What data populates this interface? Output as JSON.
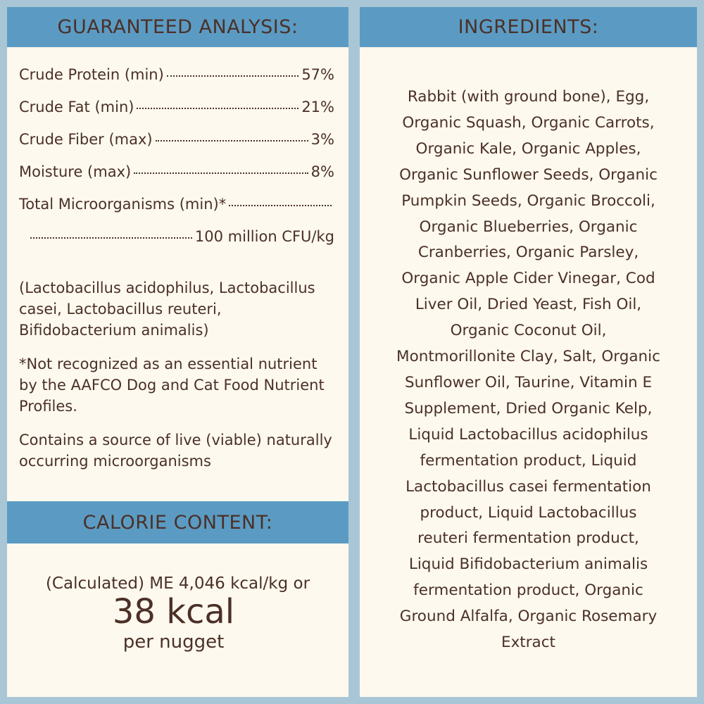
{
  "guaranteed_analysis": {
    "title": "GUARANTEED ANALYSIS:",
    "rows": [
      {
        "label": "Crude Protein (min)",
        "value": "57%"
      },
      {
        "label": "Crude Fat (min)",
        "value": "21%"
      },
      {
        "label": "Crude Fiber (max)",
        "value": "3%"
      },
      {
        "label": "Moisture (max)",
        "value": "8%"
      },
      {
        "label": "Total Microorganisms (min)*",
        "value": "100 million CFU/kg"
      }
    ],
    "notes": [
      "(Lactobacillus acidophilus, Lactobacillus casei, Lactobacillus reuteri, Bifidobacterium animalis)",
      "*Not recognized as an essential nutrient by the AAFCO Dog and Cat Food Nutrient Profiles.",
      "Contains a source of live (viable) naturally occurring microorganisms"
    ]
  },
  "calorie_content": {
    "title": "CALORIE CONTENT:",
    "line": "(Calculated) ME 4,046 kcal/kg or",
    "big": "38 kcal",
    "unit": "per nugget"
  },
  "ingredients": {
    "title": "INGREDIENTS:",
    "lines": [
      "Rabbit (with ground bone), Egg,",
      "Organic Squash, Organic Carrots,",
      "Organic Kale, Organic Apples,",
      "Organic Sunflower Seeds, Organic",
      "Pumpkin Seeds, Organic Broccoli,",
      "Organic Blueberries, Organic",
      "Cranberries, Organic Parsley,",
      "Organic Apple Cider Vinegar, Cod",
      "Liver Oil, Dried Yeast, Fish Oil,",
      "Organic Coconut Oil,",
      "Montmorillonite Clay, Salt, Organic",
      "Sunflower Oil, Taurine, Vitamin E",
      "Supplement, Dried Organic Kelp,",
      "Liquid Lactobacillus acidophilus",
      "fermentation product, Liquid",
      "Lactobacillus casei fermentation",
      "product, Liquid Lactobacillus",
      "reuteri fermentation product,",
      "Liquid Bifidobacterium animalis",
      "fermentation product, Organic",
      "Ground Alfalfa, Organic Rosemary",
      "Extract"
    ]
  }
}
